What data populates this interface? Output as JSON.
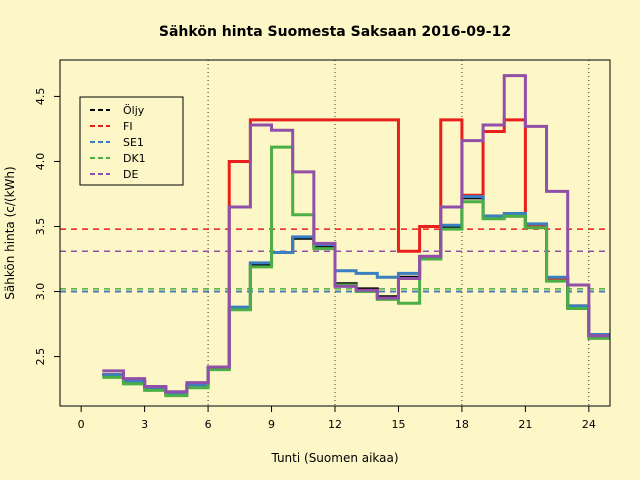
{
  "chart_data": {
    "type": "line",
    "title": "Sähkön hinta Suomesta Saksaan 2016-09-12",
    "xlabel": "Tunti (Suomen aikaa)",
    "ylabel": "Sähkön hinta (c/(kWh)",
    "xlim": [
      -1,
      25
    ],
    "ylim": [
      2.12,
      4.78
    ],
    "xticks": [
      0,
      3,
      6,
      9,
      12,
      15,
      18,
      21,
      24
    ],
    "yticks": [
      2.5,
      3.0,
      3.5,
      4.0,
      4.5
    ],
    "xtick_labels": [
      "0",
      "3",
      "6",
      "9",
      "12",
      "15",
      "18",
      "21",
      "24"
    ],
    "ytick_labels": [
      "2.5",
      "3.0",
      "3.5",
      "4.0",
      "4.5"
    ],
    "vlines": [
      6,
      12,
      18,
      24
    ],
    "legend": {
      "position": "top-left"
    },
    "series": [
      {
        "name": "Öljy",
        "color": "#000000",
        "values": [
          2.36,
          2.31,
          2.26,
          2.22,
          2.28,
          2.41,
          2.87,
          3.21,
          3.3,
          3.41,
          3.35,
          3.06,
          3.02,
          2.96,
          3.11,
          3.26,
          3.5,
          3.72,
          3.58,
          3.58,
          3.5,
          3.1,
          2.88,
          2.66
        ],
        "mean": 3.0
      },
      {
        "name": "FI",
        "color": "#e8201c",
        "values": [
          2.36,
          2.31,
          2.26,
          2.22,
          2.28,
          2.41,
          4.0,
          4.32,
          4.32,
          4.32,
          4.32,
          4.32,
          4.32,
          4.32,
          3.31,
          3.5,
          4.32,
          3.74,
          4.23,
          4.32,
          3.51,
          3.1,
          2.89,
          2.66
        ],
        "mean": 3.48
      },
      {
        "name": "SE1",
        "color": "#3a7fc0",
        "values": [
          2.36,
          2.31,
          2.26,
          2.22,
          2.28,
          2.42,
          2.88,
          3.22,
          3.3,
          3.42,
          3.36,
          3.16,
          3.14,
          3.11,
          3.14,
          3.27,
          3.51,
          3.73,
          3.58,
          3.6,
          3.52,
          3.11,
          2.89,
          2.67
        ],
        "mean": 3.0
      },
      {
        "name": "DK1",
        "color": "#4caf45",
        "values": [
          2.34,
          2.29,
          2.24,
          2.2,
          2.26,
          2.4,
          2.86,
          3.19,
          4.11,
          3.59,
          3.33,
          3.05,
          3.0,
          2.94,
          2.91,
          3.25,
          3.48,
          3.69,
          3.56,
          3.58,
          3.49,
          3.08,
          2.87,
          2.64
        ],
        "mean": 3.02
      },
      {
        "name": "DE",
        "color": "#9150a8",
        "values": [
          2.39,
          2.33,
          2.27,
          2.23,
          2.3,
          2.42,
          3.65,
          4.28,
          4.24,
          3.92,
          3.37,
          3.04,
          3.01,
          2.95,
          3.1,
          3.27,
          3.65,
          4.16,
          4.28,
          4.66,
          4.27,
          3.77,
          3.05,
          2.66
        ],
        "mean": 3.31
      }
    ]
  }
}
